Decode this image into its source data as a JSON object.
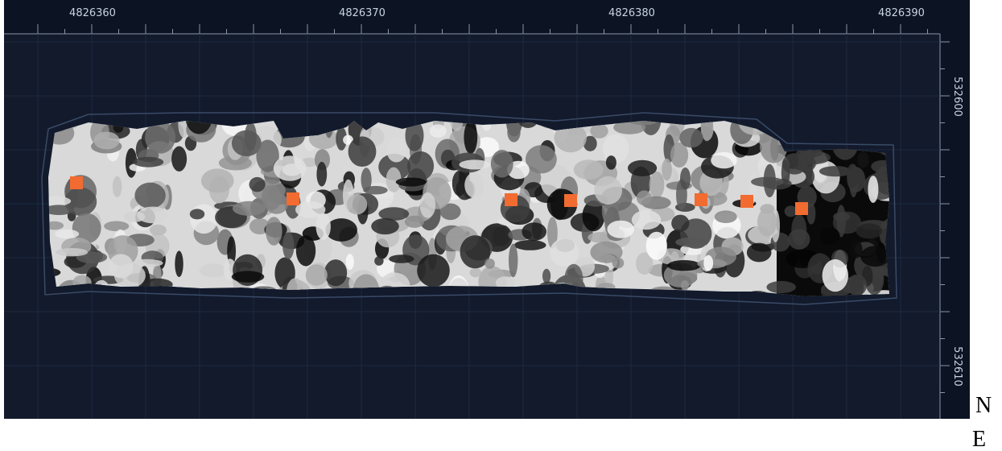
{
  "top_axis": {
    "labels": [
      "4826360",
      "4826370",
      "4826380",
      "4826390"
    ]
  },
  "right_axis": {
    "labels": [
      "532600",
      "532610"
    ]
  },
  "compass": {
    "north": "N",
    "east": "E"
  }
}
